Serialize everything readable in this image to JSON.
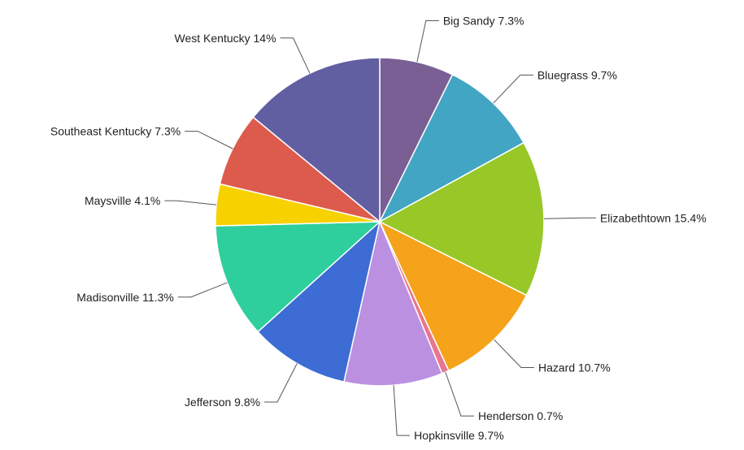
{
  "chart_data": {
    "type": "pie",
    "title": "",
    "start_angle_deg": 0,
    "direction": "clockwise",
    "legend": "none",
    "slices": [
      {
        "name": "Big Sandy",
        "value": 7.3,
        "label": "Big Sandy 7.3%",
        "color": "#7a5f95"
      },
      {
        "name": "Bluegrass",
        "value": 9.7,
        "label": "Bluegrass 9.7%",
        "color": "#41a5c3"
      },
      {
        "name": "Elizabethtown",
        "value": 15.4,
        "label": "Elizabethtown 15.4%",
        "color": "#97c828"
      },
      {
        "name": "Hazard",
        "value": 10.7,
        "label": "Hazard 10.7%",
        "color": "#f5a31a"
      },
      {
        "name": "Henderson",
        "value": 0.7,
        "label": "Henderson 0.7%",
        "color": "#e8768e"
      },
      {
        "name": "Hopkinsville",
        "value": 9.7,
        "label": "Hopkinsville 9.7%",
        "color": "#bb90e0"
      },
      {
        "name": "Jefferson",
        "value": 9.8,
        "label": "Jefferson 9.8%",
        "color": "#3c6cd4"
      },
      {
        "name": "Madisonville",
        "value": 11.3,
        "label": "Madisonville 11.3%",
        "color": "#2ecf9c"
      },
      {
        "name": "Maysville",
        "value": 4.1,
        "label": "Maysville 4.1%",
        "color": "#f8d101"
      },
      {
        "name": "Southeast Kentucky",
        "value": 7.3,
        "label": "Southeast Kentucky 7.3%",
        "color": "#dd5b4c"
      },
      {
        "name": "West Kentucky",
        "value": 14,
        "label": "West Kentucky 14%",
        "color": "#625ea2"
      }
    ]
  }
}
